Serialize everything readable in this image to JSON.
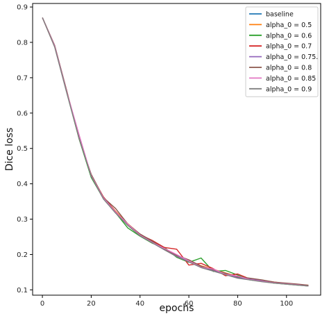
{
  "chart_data": {
    "type": "line",
    "xlabel": "epochs",
    "ylabel": "Dice loss",
    "xlim": [
      -4,
      114
    ],
    "ylim": [
      0.085,
      0.91
    ],
    "xticks": [
      0,
      20,
      40,
      60,
      80,
      100
    ],
    "yticks": [
      0.1,
      0.2,
      0.3,
      0.4,
      0.5,
      0.6,
      0.7,
      0.8,
      0.9
    ],
    "xtick_labels": [
      "0",
      "20",
      "40",
      "60",
      "80",
      "100"
    ],
    "ytick_labels": [
      "0.1",
      "0.2",
      "0.3",
      "0.4",
      "0.5",
      "0.6",
      "0.7",
      "0.8",
      "0.9"
    ],
    "grid": false,
    "legend_position": "top-right",
    "x": [
      0,
      5,
      10,
      15,
      20,
      25,
      30,
      35,
      40,
      45,
      50,
      55,
      60,
      65,
      70,
      75,
      80,
      85,
      90,
      95,
      100,
      105,
      109
    ],
    "series": [
      {
        "name": "baseline",
        "color": "#1f77b4",
        "values": [
          0.87,
          0.79,
          0.66,
          0.53,
          0.42,
          0.36,
          0.32,
          0.285,
          0.255,
          0.235,
          0.215,
          0.195,
          0.18,
          0.165,
          0.155,
          0.145,
          0.135,
          0.13,
          0.125,
          0.12,
          0.117,
          0.114,
          0.112
        ]
      },
      {
        "name": "alpha_0 = 0.5",
        "color": "#ff7f0e",
        "values": [
          0.87,
          0.788,
          0.662,
          0.532,
          0.425,
          0.362,
          0.322,
          0.287,
          0.257,
          0.237,
          0.218,
          0.197,
          0.183,
          0.168,
          0.158,
          0.148,
          0.138,
          0.132,
          0.127,
          0.122,
          0.118,
          0.115,
          0.113
        ]
      },
      {
        "name": "alpha_0 = 0.6",
        "color": "#2ca02c",
        "values": [
          0.87,
          0.79,
          0.658,
          0.528,
          0.418,
          0.358,
          0.318,
          0.275,
          0.252,
          0.232,
          0.22,
          0.192,
          0.178,
          0.19,
          0.152,
          0.155,
          0.142,
          0.128,
          0.124,
          0.119,
          0.116,
          0.113,
          0.111
        ]
      },
      {
        "name": "alpha_0 = 0.7",
        "color": "#d62728",
        "values": [
          0.87,
          0.791,
          0.661,
          0.531,
          0.424,
          0.363,
          0.321,
          0.283,
          0.256,
          0.24,
          0.22,
          0.215,
          0.17,
          0.175,
          0.16,
          0.14,
          0.145,
          0.131,
          0.126,
          0.121,
          0.118,
          0.115,
          0.112
        ]
      },
      {
        "name": "alpha_0 = 0.75.",
        "color": "#9467bd",
        "values": [
          0.87,
          0.789,
          0.659,
          0.535,
          0.422,
          0.359,
          0.319,
          0.284,
          0.254,
          0.236,
          0.214,
          0.196,
          0.181,
          0.166,
          0.156,
          0.146,
          0.136,
          0.131,
          0.126,
          0.121,
          0.117,
          0.114,
          0.112
        ]
      },
      {
        "name": "alpha_0 = 0.8",
        "color": "#8c564b",
        "values": [
          0.87,
          0.792,
          0.663,
          0.529,
          0.427,
          0.361,
          0.33,
          0.286,
          0.258,
          0.238,
          0.216,
          0.198,
          0.185,
          0.167,
          0.157,
          0.147,
          0.137,
          0.133,
          0.128,
          0.122,
          0.119,
          0.116,
          0.113
        ]
      },
      {
        "name": "alpha_0 = 0.85",
        "color": "#e377c2",
        "values": [
          0.87,
          0.79,
          0.66,
          0.54,
          0.423,
          0.36,
          0.32,
          0.286,
          0.255,
          0.234,
          0.217,
          0.2,
          0.182,
          0.164,
          0.159,
          0.144,
          0.139,
          0.129,
          0.124,
          0.12,
          0.117,
          0.114,
          0.111
        ]
      },
      {
        "name": "alpha_0 = 0.9",
        "color": "#7f7f7f",
        "values": [
          0.87,
          0.787,
          0.657,
          0.53,
          0.421,
          0.357,
          0.317,
          0.282,
          0.253,
          0.233,
          0.213,
          0.194,
          0.179,
          0.163,
          0.153,
          0.143,
          0.133,
          0.128,
          0.123,
          0.119,
          0.116,
          0.113,
          0.111
        ]
      }
    ]
  }
}
